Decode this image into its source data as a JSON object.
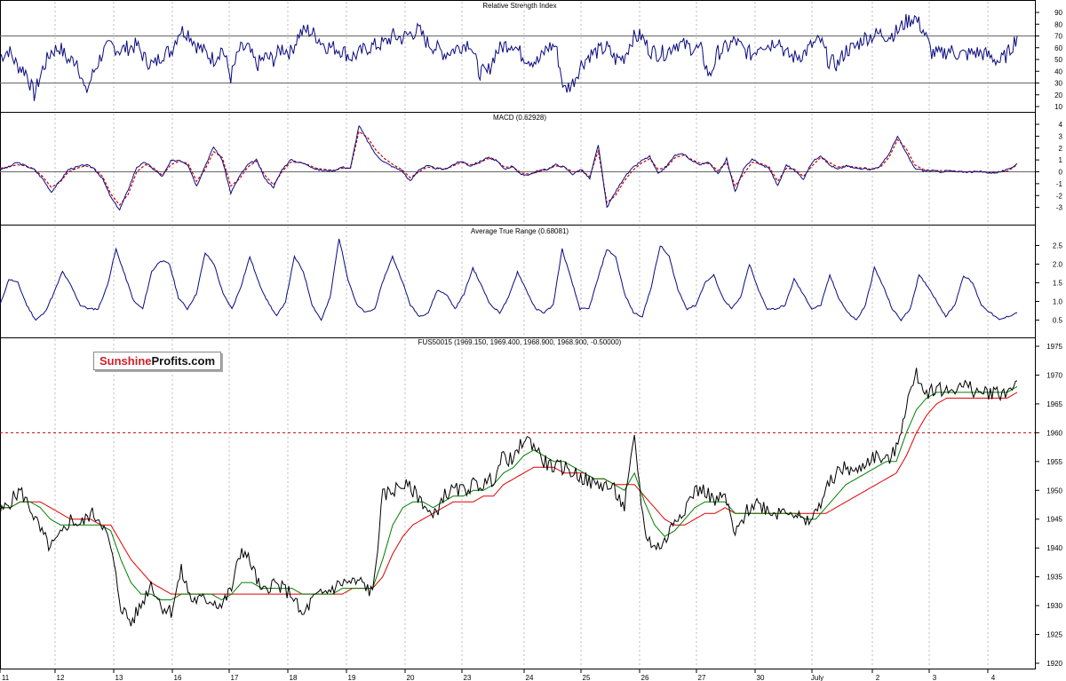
{
  "brand": {
    "part1": "Sunshine",
    "part2": "Profits.com"
  },
  "colors": {
    "rsi": "#0a0a80",
    "macd": "#0a0a80",
    "signal": "#cc0000",
    "atr": "#0a0a80",
    "price": "#000000",
    "ma_fast": "#008000",
    "ma_slow": "#e00000",
    "level": "#cc0000",
    "grid": "#bbbbbb"
  },
  "x_axis_labels": [
    "11",
    "12",
    "13",
    "16",
    "17",
    "18",
    "19",
    "20",
    "23",
    "24",
    "25",
    "26",
    "27",
    "30",
    "July",
    "2",
    "3",
    "4"
  ],
  "chart_data": [
    {
      "type": "line",
      "title": "Relative Strength Index",
      "ylim": [
        10,
        90
      ],
      "yticks": [
        10,
        20,
        30,
        40,
        50,
        60,
        70,
        80,
        90
      ],
      "reference_lines": [
        30,
        70
      ],
      "series": [
        {
          "values": [
            52,
            58,
            45,
            40,
            20,
            42,
            57,
            60,
            49,
            50,
            21,
            40,
            56,
            62,
            58,
            60,
            62,
            50,
            45,
            55,
            57,
            75,
            73,
            62,
            56,
            50,
            60,
            35,
            58,
            60,
            45,
            52,
            50,
            60,
            56,
            72,
            75,
            70,
            62,
            60,
            58,
            52,
            55,
            60,
            62,
            64,
            70,
            68,
            72,
            75,
            64,
            60,
            55,
            58,
            62,
            65,
            40,
            38,
            56,
            62,
            64,
            54,
            50,
            48,
            60,
            62,
            24,
            30,
            46,
            54,
            57,
            60,
            50,
            52,
            68,
            70,
            58,
            55,
            56,
            64,
            62,
            60,
            58,
            35,
            56,
            60,
            66,
            58,
            54,
            64,
            62,
            68,
            54,
            52,
            55,
            62,
            66,
            48,
            46,
            58,
            60,
            68,
            70,
            72,
            70,
            74,
            82,
            86,
            75,
            56,
            54,
            58,
            55,
            54,
            56,
            55,
            52,
            48,
            56,
            70
          ]
        }
      ]
    },
    {
      "type": "line",
      "title": "MACD (0.62928)",
      "ylim": [
        -4,
        4
      ],
      "yticks": [
        -3,
        -2,
        -1,
        0,
        1,
        2,
        3,
        4
      ],
      "reference_lines": [
        0
      ],
      "series": [
        {
          "values": [
            0.2,
            0.4,
            0.8,
            0.5,
            0.2,
            -0.6,
            -1.7,
            -0.8,
            0.2,
            0.4,
            0.6,
            0.3,
            -0.6,
            -2.2,
            -3.2,
            -1.5,
            0.4,
            0.8,
            0.2,
            -0.4,
            0.9,
            1.0,
            0.6,
            -1.2,
            0.5,
            2.1,
            1.0,
            -1.8,
            -0.4,
            0.6,
            1.0,
            -0.6,
            -1.3,
            0.2,
            1.0,
            0.8,
            0.6,
            0.2,
            0.1,
            0.1,
            0.4,
            0.3,
            3.9,
            2.6,
            1.4,
            0.8,
            0.4,
            0.1,
            -0.8,
            0.2,
            0.5,
            0.3,
            0.2,
            0.6,
            0.9,
            0.5,
            0.8,
            1.2,
            1.0,
            0.2,
            0.5,
            -0.3,
            -0.2,
            0.1,
            0.2,
            0.6,
            0.4,
            -0.2,
            0.2,
            -0.6,
            2.3,
            -3.0,
            -1.7,
            -0.5,
            0.3,
            0.9,
            1.3,
            -0.2,
            0.5,
            1.4,
            1.5,
            0.9,
            0.6,
            0.8,
            -0.2,
            1.1,
            -1.7,
            0.2,
            1.1,
            0.6,
            0.3,
            -1.2,
            0.6,
            0.1,
            -0.6,
            0.8,
            1.4,
            0.6,
            0.2,
            0.5,
            0.3,
            0.3,
            0.2,
            0.5,
            1.5,
            3.0,
            1.6,
            0.3,
            0.1,
            0.1,
            0.0,
            0.1,
            0.0,
            0.0,
            0.0,
            0.0,
            -0.1,
            0.0,
            0.2,
            0.7
          ]
        },
        {
          "values": [
            0.3,
            0.4,
            0.6,
            0.5,
            0.2,
            -0.4,
            -1.3,
            -0.9,
            0.0,
            0.3,
            0.5,
            0.3,
            -0.4,
            -1.9,
            -2.8,
            -1.9,
            0.0,
            0.6,
            0.3,
            -0.3,
            0.6,
            0.9,
            0.7,
            -0.8,
            0.2,
            1.7,
            1.2,
            -1.2,
            -0.6,
            0.4,
            0.9,
            -0.3,
            -1.1,
            0.0,
            0.8,
            0.8,
            0.6,
            0.3,
            0.2,
            0.1,
            0.3,
            0.3,
            3.4,
            2.9,
            1.8,
            1.1,
            0.6,
            0.2,
            -0.5,
            0.0,
            0.4,
            0.3,
            0.2,
            0.5,
            0.8,
            0.6,
            0.7,
            1.1,
            1.0,
            0.4,
            0.4,
            -0.1,
            -0.2,
            0.0,
            0.2,
            0.5,
            0.4,
            0.0,
            0.1,
            -0.4,
            1.8,
            -2.6,
            -2.0,
            -0.8,
            0.1,
            0.7,
            1.1,
            0.2,
            0.4,
            1.2,
            1.4,
            1.0,
            0.7,
            0.7,
            0.1,
            0.8,
            -1.2,
            -0.2,
            0.8,
            0.7,
            0.4,
            -0.8,
            0.3,
            0.2,
            -0.4,
            0.5,
            1.2,
            0.8,
            0.4,
            0.5,
            0.4,
            0.3,
            0.2,
            0.4,
            1.2,
            2.7,
            2.0,
            0.6,
            0.2,
            0.1,
            0.1,
            0.1,
            0.0,
            0.0,
            0.0,
            0.0,
            -0.1,
            0.0,
            0.1,
            0.6
          ]
        }
      ]
    },
    {
      "type": "line",
      "title": "Average True Range (0.68081)",
      "ylim": [
        0.25,
        2.75
      ],
      "yticks": [
        0.5,
        1.0,
        1.5,
        2.0,
        2.5
      ],
      "series": [
        {
          "values": [
            0.9,
            1.6,
            1.5,
            0.9,
            0.5,
            0.7,
            1.2,
            1.8,
            1.4,
            0.9,
            0.8,
            0.8,
            1.4,
            2.4,
            1.7,
            1.0,
            0.8,
            1.8,
            2.1,
            2.0,
            1.1,
            0.8,
            1.2,
            2.3,
            2.0,
            1.2,
            0.8,
            1.4,
            2.2,
            1.5,
            1.0,
            0.6,
            1.0,
            2.2,
            1.8,
            0.9,
            0.5,
            1.1,
            2.7,
            1.6,
            0.9,
            0.7,
            0.8,
            1.6,
            2.2,
            1.6,
            0.9,
            0.6,
            0.7,
            1.3,
            1.2,
            0.8,
            1.2,
            1.9,
            1.4,
            0.9,
            0.7,
            1.1,
            1.8,
            1.3,
            0.8,
            0.7,
            0.9,
            2.4,
            1.6,
            0.8,
            0.8,
            1.6,
            2.4,
            2.2,
            1.2,
            0.7,
            0.6,
            1.4,
            2.5,
            2.2,
            1.3,
            0.8,
            0.9,
            1.5,
            1.7,
            1.1,
            0.8,
            1.1,
            2.0,
            1.3,
            0.8,
            0.8,
            0.9,
            1.6,
            1.2,
            0.8,
            0.9,
            1.7,
            1.1,
            0.7,
            0.5,
            0.9,
            1.9,
            1.4,
            0.8,
            0.5,
            0.8,
            1.7,
            1.4,
            1.0,
            0.6,
            0.9,
            1.7,
            1.5,
            0.9,
            0.7,
            0.5,
            0.6,
            0.7
          ]
        }
      ]
    },
    {
      "type": "line",
      "title": "FUS50015 (1969.150, 1969.400, 1968.900, 1968.900, -0.50000)",
      "ylim": [
        1920,
        1975
      ],
      "yticks": [
        1920,
        1925,
        1930,
        1935,
        1940,
        1945,
        1950,
        1955,
        1960,
        1965,
        1970,
        1975
      ],
      "reference_lines": [
        1960
      ],
      "series": [
        {
          "values": [
            1946,
            1948,
            1950,
            1947,
            1943,
            1940,
            1942,
            1945,
            1944,
            1946,
            1945,
            1940,
            1930,
            1927,
            1930,
            1934,
            1930,
            1929,
            1936,
            1931,
            1931,
            1931,
            1930,
            1933,
            1940,
            1937,
            1932,
            1934,
            1933,
            1932,
            1928,
            1931,
            1932,
            1933,
            1934,
            1934,
            1934,
            1932,
            1949,
            1950,
            1951,
            1950,
            1948,
            1945,
            1949,
            1950,
            1950,
            1951,
            1951,
            1952,
            1956,
            1955,
            1959,
            1958,
            1955,
            1954,
            1954,
            1953,
            1952,
            1951,
            1951,
            1950,
            1947,
            1959,
            1943,
            1940,
            1941,
            1945,
            1947,
            1950,
            1950,
            1948,
            1949,
            1942,
            1946,
            1948,
            1947,
            1946,
            1947,
            1946,
            1944,
            1946,
            1950,
            1953,
            1954,
            1953,
            1955,
            1956,
            1955,
            1957,
            1965,
            1970,
            1967,
            1968,
            1967,
            1968,
            1968,
            1967,
            1967,
            1967,
            1967,
            1969
          ]
        },
        {
          "values": [
            1947,
            1947,
            1948,
            1948,
            1947,
            1945,
            1944,
            1944,
            1944,
            1944,
            1944,
            1943,
            1938,
            1934,
            1932,
            1932,
            1931,
            1931,
            1932,
            1932,
            1932,
            1932,
            1931,
            1932,
            1934,
            1934,
            1933,
            1933,
            1933,
            1933,
            1932,
            1932,
            1932,
            1932,
            1933,
            1933,
            1933,
            1933,
            1938,
            1944,
            1947,
            1948,
            1948,
            1947,
            1948,
            1949,
            1949,
            1950,
            1950,
            1951,
            1953,
            1954,
            1956,
            1957,
            1956,
            1955,
            1955,
            1954,
            1953,
            1952,
            1952,
            1951,
            1950,
            1953,
            1948,
            1944,
            1942,
            1943,
            1945,
            1947,
            1948,
            1948,
            1948,
            1946,
            1946,
            1946,
            1946,
            1946,
            1946,
            1946,
            1945,
            1945,
            1947,
            1949,
            1951,
            1952,
            1953,
            1954,
            1955,
            1955,
            1960,
            1964,
            1966,
            1967,
            1967,
            1967,
            1967,
            1967,
            1967,
            1967,
            1967,
            1968
          ]
        },
        {
          "values": [
            1947,
            1947,
            1948,
            1948,
            1948,
            1947,
            1946,
            1945,
            1945,
            1945,
            1944,
            1944,
            1941,
            1938,
            1936,
            1934,
            1933,
            1932,
            1932,
            1932,
            1932,
            1932,
            1932,
            1932,
            1932,
            1932,
            1932,
            1932,
            1932,
            1932,
            1932,
            1932,
            1932,
            1932,
            1932,
            1933,
            1933,
            1933,
            1935,
            1939,
            1942,
            1944,
            1945,
            1946,
            1947,
            1948,
            1948,
            1948,
            1949,
            1949,
            1951,
            1952,
            1953,
            1954,
            1954,
            1954,
            1953,
            1953,
            1953,
            1952,
            1952,
            1951,
            1951,
            1951,
            1949,
            1947,
            1945,
            1944,
            1944,
            1945,
            1946,
            1946,
            1947,
            1946,
            1946,
            1946,
            1946,
            1946,
            1946,
            1946,
            1946,
            1946,
            1946,
            1947,
            1948,
            1949,
            1950,
            1951,
            1952,
            1953,
            1956,
            1960,
            1963,
            1965,
            1966,
            1966,
            1966,
            1966,
            1966,
            1966,
            1966,
            1967
          ]
        }
      ]
    }
  ]
}
